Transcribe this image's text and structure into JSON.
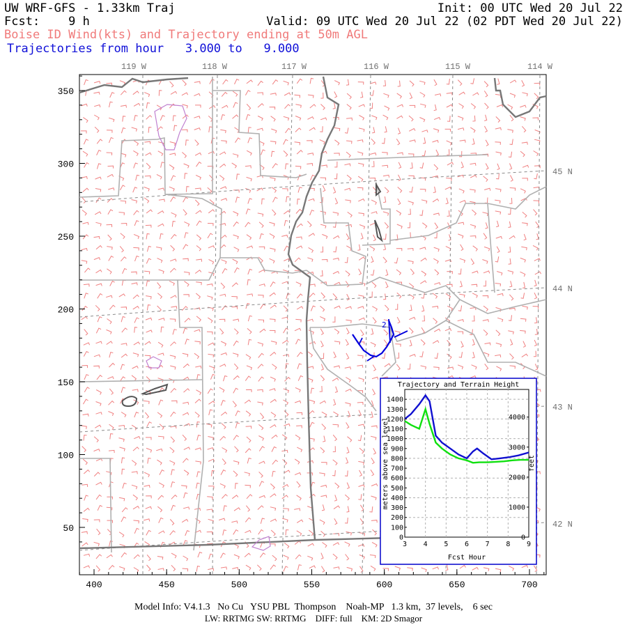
{
  "header": {
    "line1_left": "UW WRF-GFS - 1.33km Traj",
    "line1_right": "Init: 00 UTC Wed 20 Jul 22",
    "line2_left": "Fcst:    9 h",
    "line2_right": "Valid: 09 UTC Wed 20 Jul 22 (02 PDT Wed 20 Jul 22)",
    "line3": "Boise ID Wind(kts) and Trajectory ending at 50m AGL",
    "line4": "Trajectories from hour   3.000 to   9.000"
  },
  "map": {
    "x_ticks": [
      "400",
      "450",
      "500",
      "550",
      "600",
      "650",
      "700"
    ],
    "y_ticks": [
      "350",
      "300",
      "250",
      "200",
      "150",
      "100",
      "50"
    ],
    "lon_labels": [
      "119 W",
      "118 W",
      "117 W",
      "116 W",
      "115 W",
      "114 W"
    ],
    "lat_labels": [
      "45 N",
      "44 N",
      "43 N",
      "42 N"
    ],
    "colors": {
      "wind_barbs": "#f08080",
      "borders": "#b0b0b0",
      "state_lines": "#707070",
      "trajectory": "#0000dd",
      "terrain": "#c080d0"
    },
    "trajectory_marker": "2"
  },
  "inset": {
    "title": "Trajectory and Terrain Height",
    "ylabel_left": "meters above sea level",
    "ylabel_right": "feet",
    "xlabel": "Fcst Hour",
    "y_left_ticks": [
      "0",
      "100",
      "200",
      "300",
      "400",
      "500",
      "600",
      "700",
      "800",
      "900",
      "1000",
      "1100",
      "1200",
      "1300",
      "1400"
    ],
    "y_right_ticks": [
      "0",
      "1000",
      "2000",
      "3000",
      "4000"
    ],
    "x_ticks": [
      "3",
      "4",
      "5",
      "6",
      "7",
      "8",
      "9"
    ]
  },
  "chart_data": {
    "type": "line",
    "title": "Trajectory and Terrain Height",
    "xlabel": "Fcst Hour",
    "ylabel": "meters above sea level",
    "xlim": [
      3,
      9
    ],
    "ylim": [
      0,
      1500
    ],
    "grid": true,
    "series": [
      {
        "color": "#1010d0",
        "x": [
          3.0,
          3.3,
          3.7,
          4.0,
          4.2,
          4.5,
          4.8,
          5.2,
          5.6,
          6.0,
          6.3,
          6.5,
          6.8,
          7.2,
          7.6,
          8.0,
          8.5,
          9.0
        ],
        "values": [
          1200,
          1250,
          1350,
          1440,
          1380,
          1030,
          960,
          900,
          840,
          800,
          870,
          900,
          850,
          790,
          800,
          810,
          830,
          860
        ]
      },
      {
        "color": "#10e010",
        "x": [
          3.0,
          3.3,
          3.7,
          4.0,
          4.2,
          4.5,
          4.8,
          5.2,
          5.6,
          6.0,
          6.3,
          6.6,
          7.0,
          7.4,
          7.8,
          8.2,
          8.6,
          9.0
        ],
        "values": [
          1180,
          1140,
          1100,
          1300,
          1150,
          960,
          900,
          840,
          800,
          780,
          755,
          760,
          760,
          765,
          770,
          780,
          785,
          785
        ]
      }
    ]
  },
  "footer": {
    "line1": "Model Info: V4.1.3   No Cu   YSU PBL  Thompson    Noah-MP   1.3 km,  37 levels,    6 sec",
    "line2": "LW: RRTMG SW: RRTMG    DIFF: full    KM: 2D Smagor"
  }
}
